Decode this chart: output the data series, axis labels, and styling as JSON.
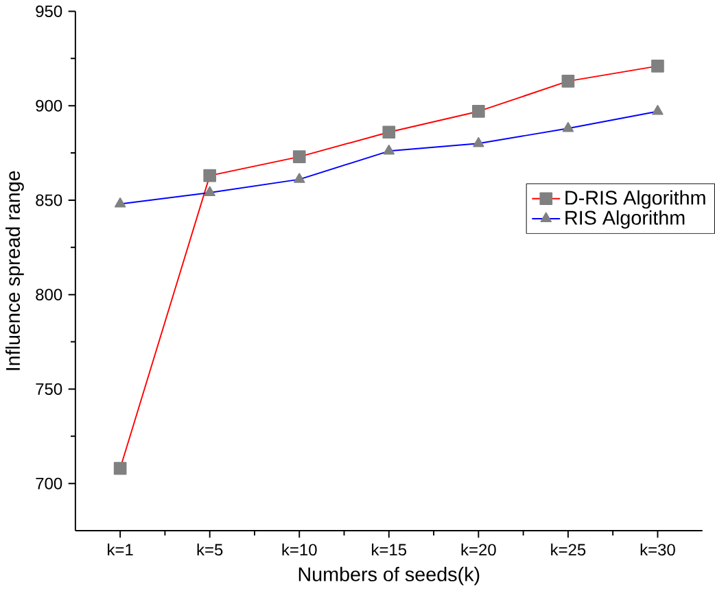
{
  "chart_data": {
    "type": "line",
    "xlabel": "Numbers of seeds(k)",
    "ylabel": "Influence spread range",
    "categories": [
      "k=1",
      "k=5",
      "k=10",
      "k=15",
      "k=20",
      "k=25",
      "k=30"
    ],
    "series": [
      {
        "name": "D-RIS Algorithm",
        "color": "#ff0000",
        "marker": "square",
        "values": [
          708,
          863,
          873,
          886,
          897,
          913,
          921
        ]
      },
      {
        "name": "RIS Algorithm",
        "color": "#0000ff",
        "marker": "triangle",
        "values": [
          848,
          854,
          861,
          876,
          880,
          888,
          897
        ]
      }
    ],
    "ylim": [
      675,
      950
    ],
    "yticks": [
      700,
      750,
      800,
      850,
      900,
      950
    ],
    "legend": "right",
    "grid": false,
    "line_style": "solid"
  }
}
